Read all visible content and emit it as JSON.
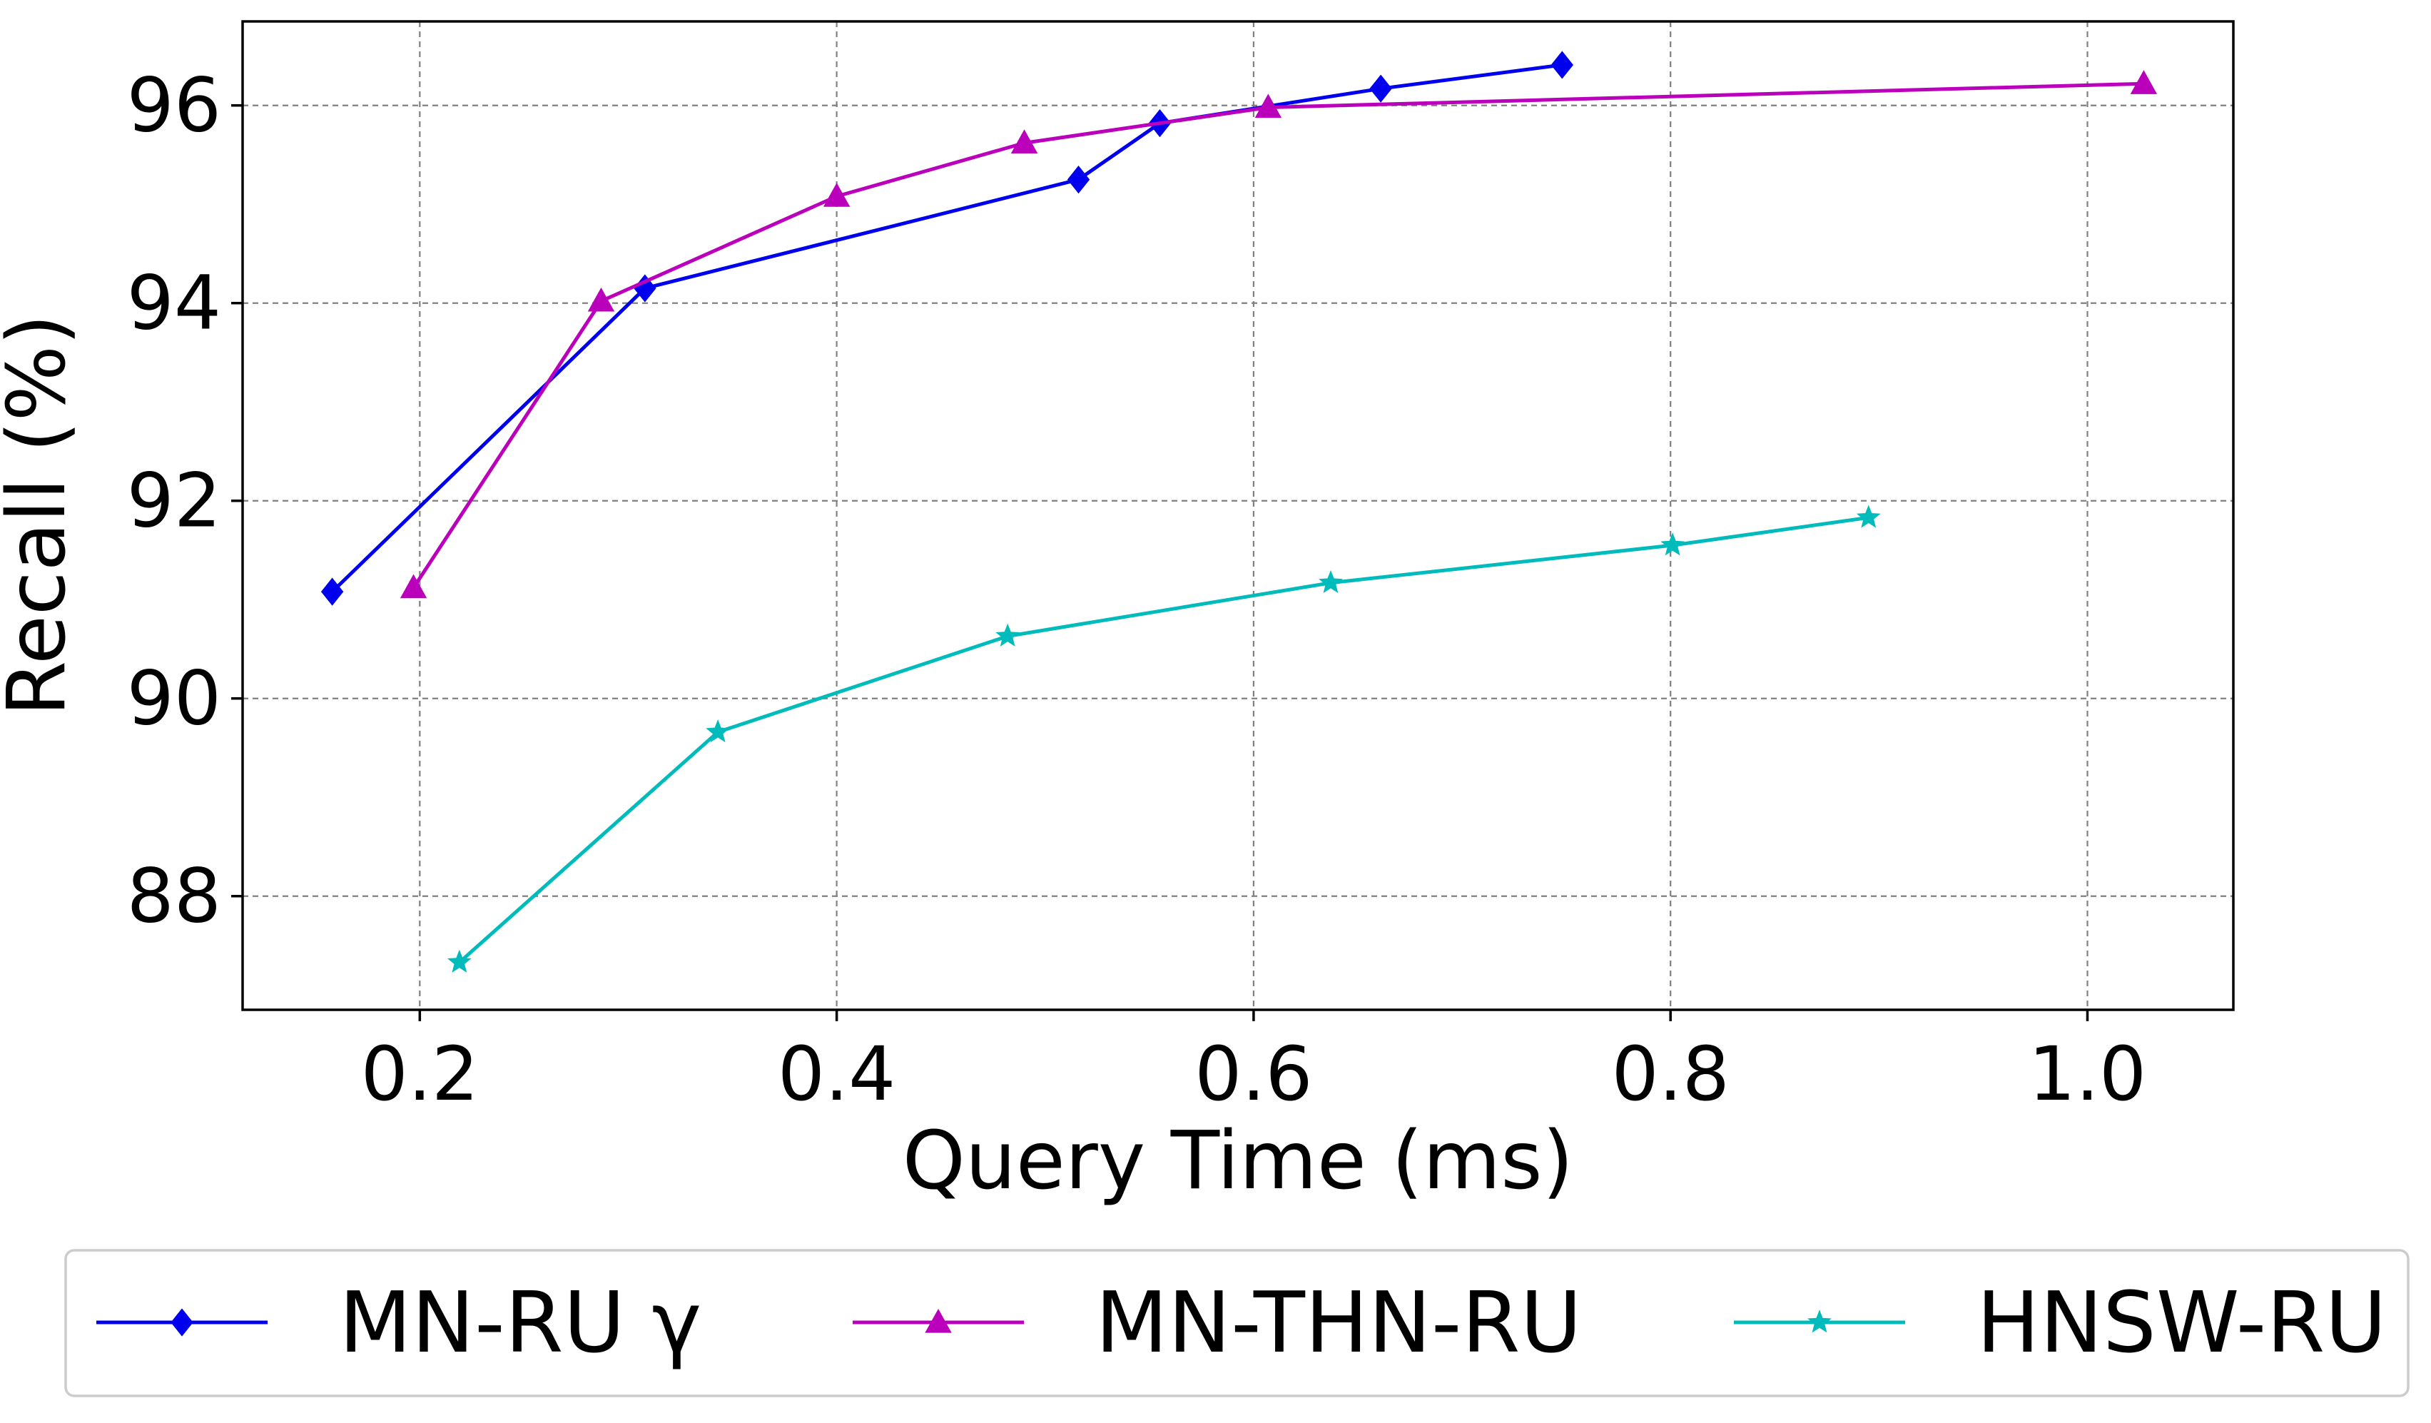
{
  "chart_data": {
    "type": "line",
    "title": "",
    "xlabel": "Query Time (ms)",
    "ylabel": "Recall (%)",
    "xlim": [
      0.115,
      1.07
    ],
    "ylim": [
      86.85,
      96.85
    ],
    "xticks": [
      0.2,
      0.4,
      0.6,
      0.8,
      1.0
    ],
    "xtick_labels": [
      "0.2",
      "0.4",
      "0.6",
      "0.8",
      "1.0"
    ],
    "yticks": [
      88,
      90,
      92,
      94,
      96
    ],
    "ytick_labels": [
      "88",
      "90",
      "92",
      "94",
      "96"
    ],
    "grid": true,
    "legend_position": "bottom-outside",
    "series": [
      {
        "name": "MN-RU γ",
        "color": "#0000ee",
        "marker": "diamond",
        "x": [
          0.158,
          0.308,
          0.516,
          0.555,
          0.661,
          0.748
        ],
        "y": [
          91.08,
          94.15,
          95.25,
          95.82,
          96.17,
          96.41
        ]
      },
      {
        "name": "MN-THN-RU",
        "color": "#bb00bb",
        "marker": "triangle",
        "x": [
          0.197,
          0.287,
          0.4,
          0.49,
          0.607,
          1.027
        ],
        "y": [
          91.12,
          94.02,
          95.08,
          95.62,
          95.98,
          96.22
        ]
      },
      {
        "name": "HNSW-RU",
        "color": "#00bbbb",
        "marker": "star",
        "x": [
          0.219,
          0.343,
          0.482,
          0.637,
          0.801,
          0.895
        ],
        "y": [
          87.33,
          89.66,
          90.63,
          91.17,
          91.55,
          91.83
        ]
      }
    ]
  }
}
